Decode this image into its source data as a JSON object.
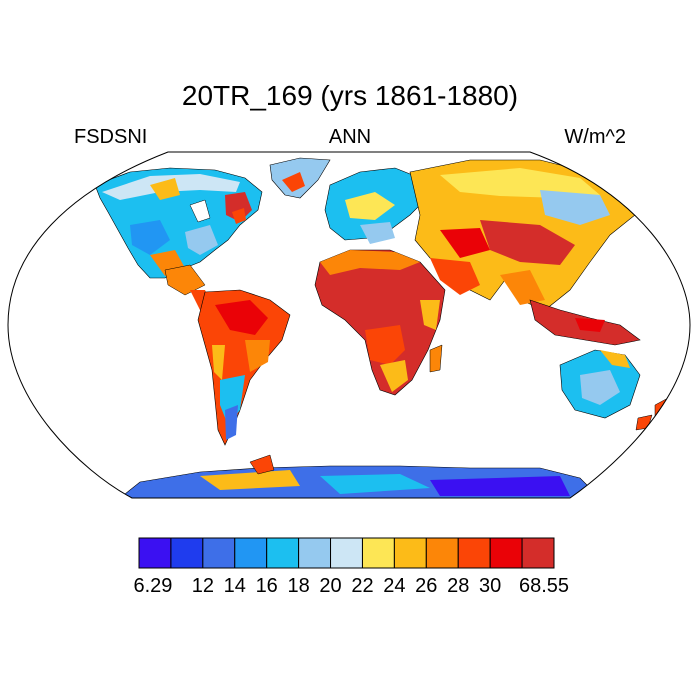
{
  "title": "20TR_169 (yrs 1861-1880)",
  "variable": "FSDSNI",
  "period": "ANN",
  "units": "W/m^2",
  "colorbar": {
    "colors": [
      "#3b10f2",
      "#1f3cee",
      "#3e6fe8",
      "#2196f3",
      "#1cbff0",
      "#95c9ef",
      "#cde6f5",
      "#fde655",
      "#fcbb18",
      "#fc8608",
      "#fb4506",
      "#ea0207",
      "#d42d2a"
    ],
    "labels": [
      "6.29",
      "12",
      "14",
      "16",
      "18",
      "20",
      "22",
      "24",
      "26",
      "28",
      "30",
      "68.55"
    ]
  }
}
